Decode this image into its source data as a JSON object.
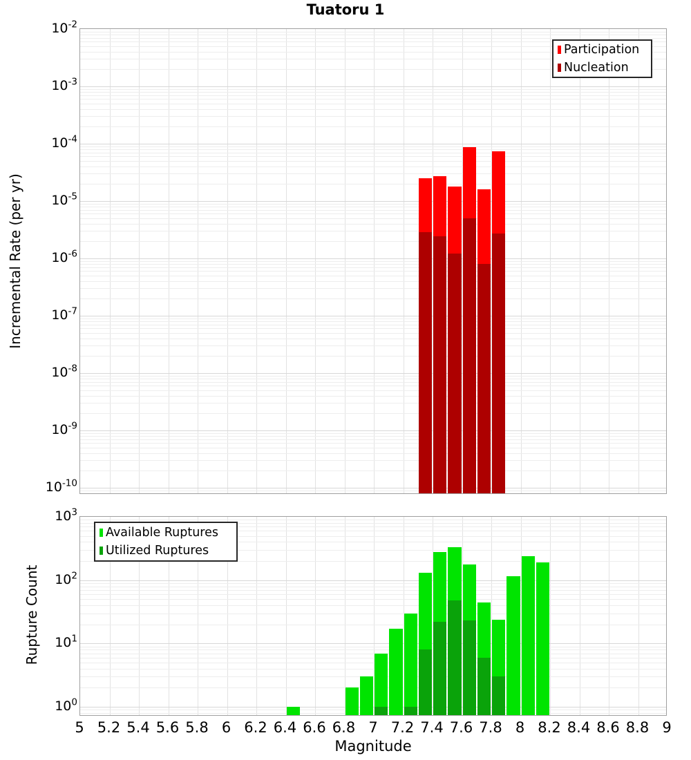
{
  "figure_title": "Tuatoru 1",
  "chart_data": [
    {
      "type": "bar",
      "title": "Tuatoru 1",
      "ylabel": "Incremental Rate (per yr)",
      "xlabel": "",
      "yscale": "log",
      "ylim": [
        1e-10,
        0.01
      ],
      "xlim": [
        5,
        9
      ],
      "grid": true,
      "bin_width": 0.1,
      "categories": [
        7.35,
        7.45,
        7.55,
        7.65,
        7.75,
        7.85
      ],
      "series": [
        {
          "name": "Participation",
          "color": "#ff0000",
          "values": [
            2.5e-05,
            2.7e-05,
            1.8e-05,
            8.8e-05,
            1.6e-05,
            7.3e-05
          ]
        },
        {
          "name": "Nucleation",
          "color": "#ad0000",
          "values": [
            2.9e-06,
            2.4e-06,
            1.2e-06,
            5e-06,
            8e-07,
            2.7e-06
          ]
        }
      ],
      "legend": {
        "position": "top-right",
        "items": [
          "Participation",
          "Nucleation"
        ]
      },
      "ytick_exponents": [
        -2,
        -3,
        -4,
        -5,
        -6,
        -7,
        -8,
        -9,
        -10
      ]
    },
    {
      "type": "bar",
      "title": "",
      "ylabel": "Rupture Count",
      "xlabel": "Magnitude",
      "yscale": "log",
      "ylim": [
        1,
        1000
      ],
      "xlim": [
        5,
        9
      ],
      "grid": true,
      "bin_width": 0.1,
      "categories": [
        6.45,
        6.85,
        6.95,
        7.05,
        7.15,
        7.25,
        7.35,
        7.45,
        7.55,
        7.65,
        7.75,
        7.85,
        7.95,
        8.05,
        8.15
      ],
      "series": [
        {
          "name": "Available Ruptures",
          "color": "#00e400",
          "values": [
            1,
            2,
            3,
            7,
            17,
            30,
            130,
            280,
            330,
            175,
            45,
            24,
            115,
            240,
            190
          ]
        },
        {
          "name": "Utilized Ruptures",
          "color": "#0aa30a",
          "values": [
            0,
            0,
            0,
            1,
            0,
            1,
            8,
            22,
            48,
            23,
            6,
            3,
            0,
            0,
            0
          ]
        }
      ],
      "legend": {
        "position": "top-left",
        "items": [
          "Available Ruptures",
          "Utilized Ruptures"
        ]
      },
      "ytick_exponents": [
        3,
        2,
        1,
        0
      ],
      "xtick_labels": [
        "5",
        "5.2",
        "5.4",
        "5.6",
        "5.8",
        "6",
        "6.2",
        "6.4",
        "6.6",
        "6.8",
        "7",
        "7.2",
        "7.4",
        "7.6",
        "7.8",
        "8",
        "8.2",
        "8.4",
        "8.6",
        "8.8",
        "9"
      ]
    }
  ]
}
